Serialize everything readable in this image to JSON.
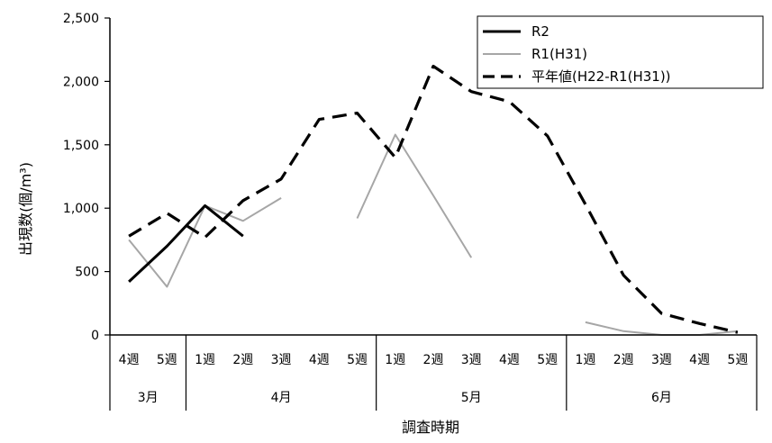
{
  "chart_data": {
    "type": "line",
    "xlabel": "調査時期",
    "ylabel": "出現数(個/m³)",
    "ylim": [
      0,
      2500
    ],
    "yticks": [
      0,
      500,
      1000,
      1500,
      2000,
      2500
    ],
    "ytick_labels": [
      "0",
      "500",
      "1,000",
      "1,500",
      "2,000",
      "2,500"
    ],
    "grid": false,
    "legend_position": "top-right",
    "categories": [
      "4週",
      "5週",
      "1週",
      "2週",
      "3週",
      "4週",
      "5週",
      "1週",
      "2週",
      "3週",
      "4週",
      "5週",
      "1週",
      "2週",
      "3週",
      "4週",
      "5週"
    ],
    "month_groups": [
      {
        "label": "3月",
        "count": 2
      },
      {
        "label": "4月",
        "count": 5
      },
      {
        "label": "5月",
        "count": 5
      },
      {
        "label": "6月",
        "count": 5
      }
    ],
    "series": [
      {
        "name": "R2",
        "color": "#000000",
        "style": "solid-thick",
        "values": [
          420,
          700,
          1020,
          780,
          null,
          null,
          null,
          null,
          null,
          null,
          null,
          null,
          null,
          null,
          null,
          null,
          null
        ]
      },
      {
        "name": "R1(H31)",
        "color": "#a6a6a6",
        "style": "solid-thin",
        "values": [
          750,
          380,
          1020,
          900,
          1080,
          null,
          920,
          1580,
          1100,
          610,
          null,
          null,
          100,
          30,
          0,
          0,
          30
        ]
      },
      {
        "name": "平年値(H22-R1(H31))",
        "color": "#000000",
        "style": "dashed",
        "values": [
          780,
          960,
          770,
          1060,
          1230,
          1700,
          1750,
          1400,
          2120,
          1920,
          1840,
          1570,
          1030,
          470,
          170,
          90,
          20
        ]
      }
    ]
  }
}
